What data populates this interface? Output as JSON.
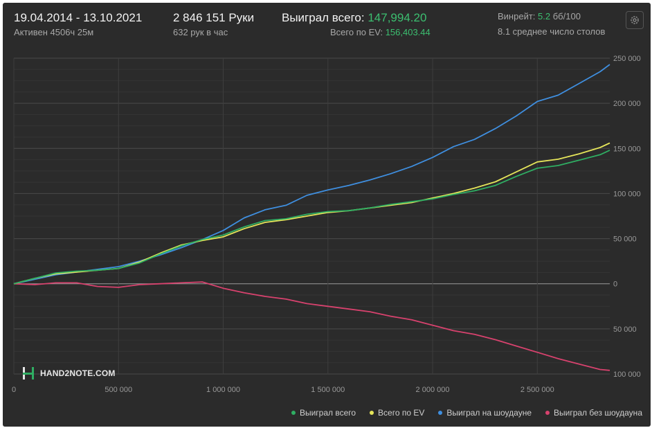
{
  "header": {
    "date_range": "19.04.2014 - 13.10.2021",
    "active": "Активен 4506ч 25м",
    "hands": "2 846 151 Руки",
    "hands_per_hour": "632 рук в час",
    "won_total_label": "Выиграл всего:",
    "won_total_value": "147,994.20",
    "ev_total_label": "Всего по EV:",
    "ev_total_value": "156,403.44",
    "winrate_label": "Винрейт:",
    "winrate_value": "5.2",
    "winrate_unit": "бб/100",
    "avg_tables": "8.1 среднее число столов"
  },
  "logo": {
    "text": "HAND2NOTE.COM"
  },
  "colors": {
    "won_total": "#2fae63",
    "ev": "#e6e65a",
    "showdown": "#3f8fe0",
    "non_showdown": "#d8426e",
    "accent": "#3cbf70"
  },
  "chart_data": {
    "type": "line",
    "xlim": [
      0,
      2846151
    ],
    "ylim": [
      -100000,
      250000
    ],
    "x_ticks": [
      0,
      500000,
      1000000,
      1500000,
      2000000,
      2500000
    ],
    "x_tick_labels": [
      "0",
      "500 000",
      "1 000 000",
      "1 500 000",
      "2 000 000",
      "2 500 000"
    ],
    "y_ticks": [
      250000,
      200000,
      150000,
      100000,
      50000,
      0,
      -50000,
      -100000
    ],
    "y_tick_labels": [
      "250 000",
      "200 000",
      "150 000",
      "100 000",
      "50 000",
      "0",
      "50 000",
      "100 000"
    ],
    "grid": true,
    "legend_position": "bottom-right",
    "x": [
      0,
      100000,
      200000,
      300000,
      400000,
      500000,
      600000,
      700000,
      800000,
      900000,
      1000000,
      1100000,
      1200000,
      1300000,
      1400000,
      1500000,
      1600000,
      1700000,
      1800000,
      1900000,
      2000000,
      2100000,
      2200000,
      2300000,
      2400000,
      2500000,
      2600000,
      2700000,
      2800000,
      2846151
    ],
    "series": [
      {
        "name": "Выиграл всего",
        "color": "#2fae63",
        "values": [
          0,
          6000,
          12000,
          14000,
          15000,
          17000,
          23000,
          33000,
          42000,
          49000,
          54000,
          63000,
          70000,
          72000,
          77000,
          80000,
          81000,
          84000,
          88000,
          91000,
          94000,
          99000,
          103000,
          109000,
          119000,
          128000,
          131000,
          137000,
          143000,
          148000
        ]
      },
      {
        "name": "Всего по EV",
        "color": "#e6e65a",
        "values": [
          0,
          6000,
          11000,
          13000,
          15000,
          17000,
          24000,
          34000,
          43000,
          48000,
          52000,
          61000,
          68000,
          71000,
          75000,
          79000,
          81000,
          84000,
          87000,
          90000,
          95000,
          100000,
          106000,
          113000,
          124000,
          135000,
          138000,
          144000,
          151000,
          156000
        ]
      },
      {
        "name": "Выиграл на шоудауне",
        "color": "#3f8fe0",
        "values": [
          0,
          5000,
          10000,
          13000,
          16000,
          19000,
          25000,
          32000,
          40000,
          49000,
          59000,
          73000,
          82000,
          87000,
          98000,
          104000,
          109000,
          115000,
          122000,
          130000,
          140000,
          152000,
          160000,
          172000,
          186000,
          202000,
          209000,
          222000,
          235000,
          243000
        ]
      },
      {
        "name": "Выиграл без шоудауна",
        "color": "#d8426e",
        "values": [
          0,
          -1000,
          1000,
          1000,
          -3000,
          -4000,
          -1000,
          0,
          1000,
          2000,
          -5000,
          -10000,
          -14000,
          -17000,
          -22000,
          -25000,
          -28000,
          -31000,
          -36000,
          -40000,
          -46000,
          -52000,
          -56000,
          -62000,
          -69000,
          -76000,
          -83000,
          -89000,
          -95000,
          -96000
        ]
      }
    ]
  }
}
